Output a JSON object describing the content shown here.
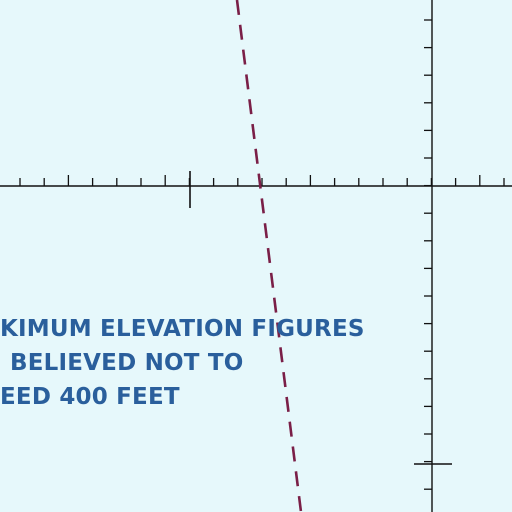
{
  "map": {
    "background_color": "#e6f8fb",
    "grid_line_color": "#111111",
    "boundary_line_color": "#7a1f47",
    "text_color": "#2a5f9c"
  },
  "note": {
    "lines": [
      "KIMUM ELEVATION FIGURES",
      "BELIEVED NOT TO",
      "EED 400 FEET"
    ]
  }
}
